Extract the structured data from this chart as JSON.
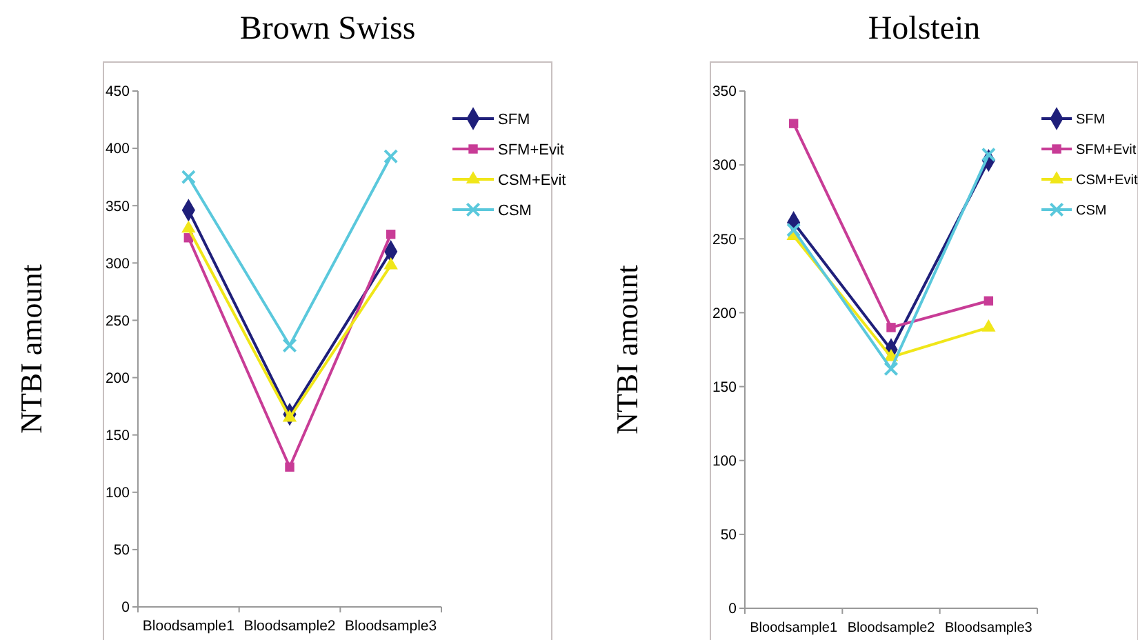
{
  "chart_data": [
    {
      "type": "line",
      "title": "Brown Swiss",
      "ylabel": "NTBI amount",
      "categories": [
        "Bloodsample1",
        "Bloodsample2",
        "Bloodsample3"
      ],
      "ylim": [
        0,
        450
      ],
      "yticks": [
        0,
        50,
        100,
        150,
        200,
        250,
        300,
        350,
        400,
        450
      ],
      "legend": "top right",
      "grid": false,
      "series": [
        {
          "name": "SFM",
          "color": "#1f1f7a",
          "marker": "diamond",
          "values": [
            346,
            168,
            310
          ]
        },
        {
          "name": "SFM+Evit",
          "color": "#c83c96",
          "marker": "square",
          "values": [
            322,
            122,
            325
          ]
        },
        {
          "name": "CSM+Evit",
          "color": "#f0e619",
          "marker": "triangle",
          "values": [
            330,
            165,
            298
          ]
        },
        {
          "name": "CSM",
          "color": "#5ac8dc",
          "marker": "cross",
          "values": [
            375,
            228,
            393
          ]
        }
      ]
    },
    {
      "type": "line",
      "title": "Holstein",
      "ylabel": "NTBI amount",
      "categories": [
        "Bloodsample1",
        "Bloodsample2",
        "Bloodsample3"
      ],
      "ylim": [
        0,
        350
      ],
      "yticks": [
        0,
        50,
        100,
        150,
        200,
        250,
        300,
        350
      ],
      "legend": "top right",
      "grid": false,
      "series": [
        {
          "name": "SFM",
          "color": "#1f1f7a",
          "marker": "diamond",
          "values": [
            261,
            175,
            303
          ]
        },
        {
          "name": "SFM+Evit",
          "color": "#c83c96",
          "marker": "square",
          "values": [
            328,
            190,
            208
          ]
        },
        {
          "name": "CSM+Evit",
          "color": "#f0e619",
          "marker": "triangle",
          "values": [
            252,
            170,
            190
          ]
        },
        {
          "name": "CSM",
          "color": "#5ac8dc",
          "marker": "cross",
          "values": [
            256,
            162,
            307
          ]
        }
      ]
    }
  ]
}
